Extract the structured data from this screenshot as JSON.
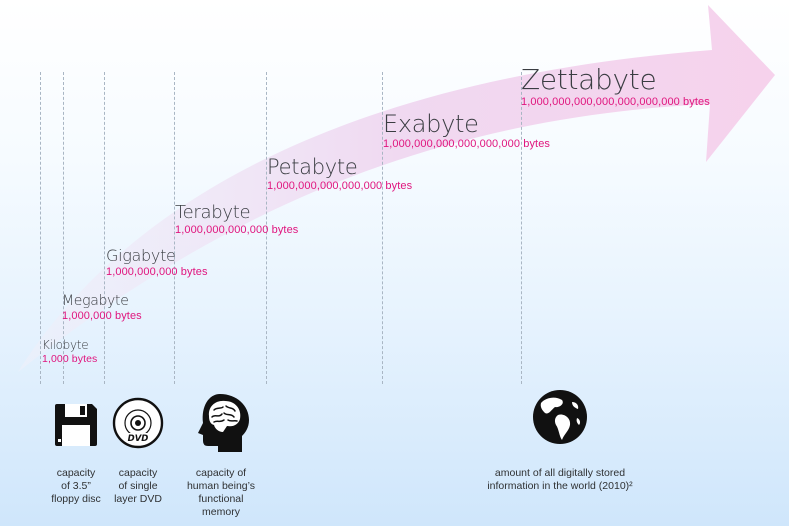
{
  "units": [
    {
      "name": "Kilobyte",
      "bytes": "1,000 bytes"
    },
    {
      "name": "Megabyte",
      "bytes": "1,000,000 bytes"
    },
    {
      "name": "Gigabyte",
      "bytes": "1,000,000,000 bytes"
    },
    {
      "name": "Terabyte",
      "bytes": "1,000,000,000,000 bytes"
    },
    {
      "name": "Petabyte",
      "bytes": "1,000,000,000,000,000 bytes"
    },
    {
      "name": "Exabyte",
      "bytes": "1,000,000,000,000,000,000 bytes"
    },
    {
      "name": "Zettabyte",
      "bytes": "1,000,000,000,000,000,000,000 bytes"
    }
  ],
  "captions": {
    "floppy": [
      "capacity",
      "of 3.5”",
      "floppy disc"
    ],
    "dvd": [
      "capacity",
      "of single",
      "layer DVD"
    ],
    "brain": [
      "capacity of",
      "human being’s",
      "functional",
      "memory"
    ],
    "world": [
      "amount of all digitally stored",
      "information in the world (2010)²"
    ]
  },
  "icons": {
    "floppy": "floppy-disk-icon",
    "dvd": "dvd-disc-icon",
    "brain": "human-head-brain-icon",
    "world": "globe-icon",
    "dvd_label": "DVD"
  },
  "colors": {
    "byte_count": "#e0157e",
    "arrow": "#f4d3ec",
    "background_bottom": "#cfe6fb"
  }
}
